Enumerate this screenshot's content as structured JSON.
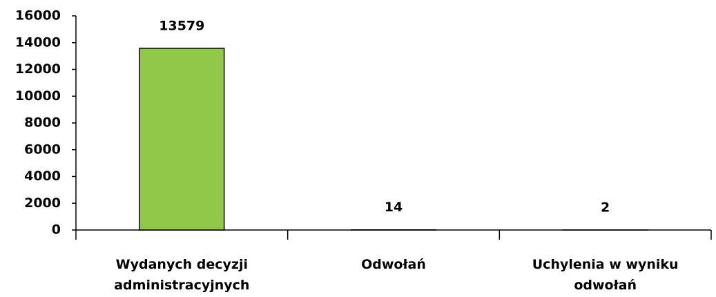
{
  "chart_data": {
    "type": "bar",
    "categories": [
      "Wydanych decyzji administracyjnych",
      "Odwołań",
      "Uchylenia w wyniku odwołań"
    ],
    "values": [
      13579,
      14,
      2
    ],
    "color": "#92c84a",
    "ylim": [
      0,
      16000
    ],
    "yticks": [
      0,
      2000,
      4000,
      6000,
      8000,
      10000,
      12000,
      14000,
      16000
    ]
  }
}
